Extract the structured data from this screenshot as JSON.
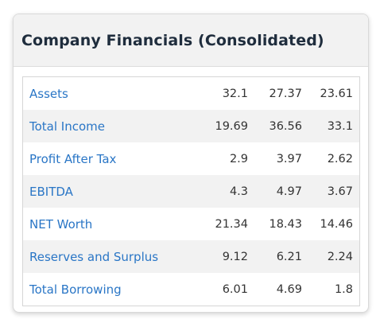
{
  "card": {
    "title": "Company Financials (Consolidated)"
  },
  "rows": [
    {
      "label": "Assets",
      "values": [
        "32.1",
        "27.37",
        "23.61"
      ]
    },
    {
      "label": "Total Income",
      "values": [
        "19.69",
        "36.56",
        "33.1"
      ]
    },
    {
      "label": "Profit After Tax",
      "values": [
        "2.9",
        "3.97",
        "2.62"
      ]
    },
    {
      "label": "EBITDA",
      "values": [
        "4.3",
        "4.97",
        "3.67"
      ]
    },
    {
      "label": "NET Worth",
      "values": [
        "21.34",
        "18.43",
        "14.46"
      ]
    },
    {
      "label": "Reserves and Surplus",
      "values": [
        "9.12",
        "6.21",
        "2.24"
      ]
    },
    {
      "label": "Total Borrowing",
      "values": [
        "6.01",
        "4.69",
        "1.8"
      ]
    }
  ]
}
